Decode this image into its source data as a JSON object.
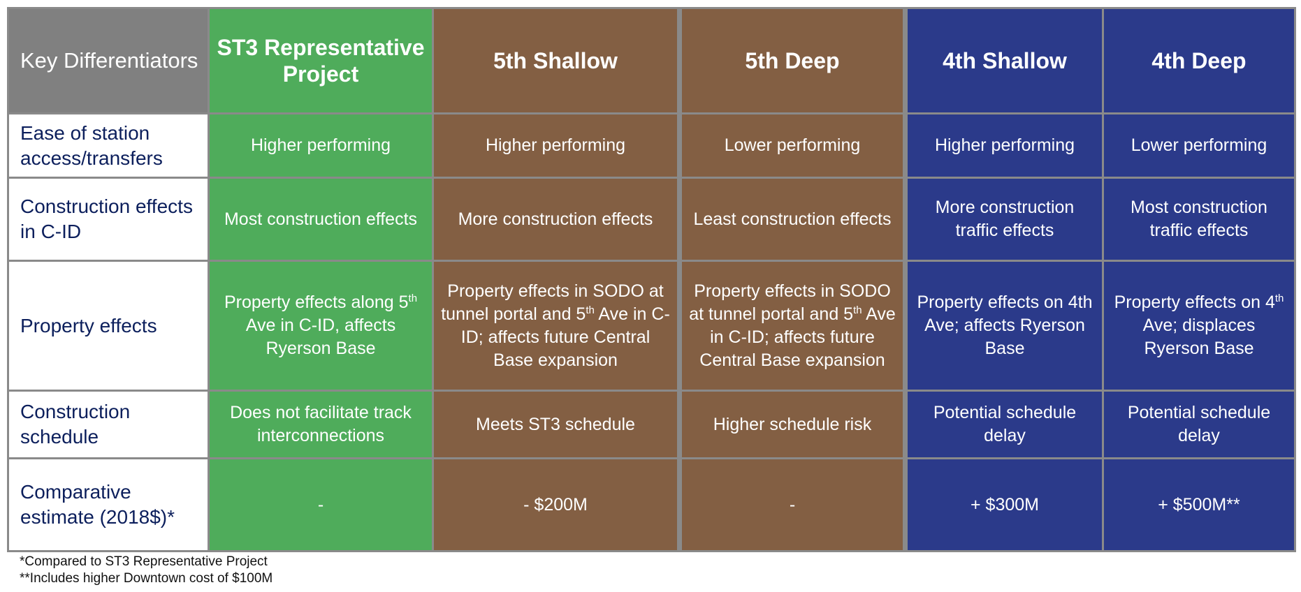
{
  "header": {
    "key_label": "Key Differentiators",
    "options": [
      {
        "name": "ST3 Representative Project",
        "color": "#4fac5b"
      },
      {
        "name": "5th Shallow",
        "color": "#835f43"
      },
      {
        "name": "5th Deep",
        "color": "#835f43"
      },
      {
        "name": "4th Shallow",
        "color": "#2b3a8a"
      },
      {
        "name": "4th Deep",
        "color": "#2b3a8a"
      }
    ]
  },
  "rows": [
    {
      "label": "Ease of station access/transfers",
      "height": 92,
      "cells": [
        [
          {
            "t": "Higher performing"
          }
        ],
        [
          {
            "t": "Higher performing"
          }
        ],
        [
          {
            "t": "Lower performing"
          }
        ],
        [
          {
            "t": "Higher performing"
          }
        ],
        [
          {
            "t": "Lower performing"
          }
        ]
      ]
    },
    {
      "label": "Construction effects in C-ID",
      "height": 119,
      "cells": [
        [
          {
            "t": "Most construction effects"
          }
        ],
        [
          {
            "t": "More construction effects"
          }
        ],
        [
          {
            "t": "Least construction effects"
          }
        ],
        [
          {
            "t": "More construction traffic effects"
          }
        ],
        [
          {
            "t": "Most construction traffic effects"
          }
        ]
      ]
    },
    {
      "label": "Property effects",
      "height": 186,
      "cells": [
        [
          {
            "t": "Property effects along 5"
          },
          {
            "t": "th",
            "sup": true
          },
          {
            "t": " Ave in C-ID, affects Ryerson Base"
          }
        ],
        [
          {
            "t": "Property effects in SODO at tunnel portal and 5"
          },
          {
            "t": "th",
            "sup": true
          },
          {
            "t": " Ave in C-ID; affects future Central Base expansion"
          }
        ],
        [
          {
            "t": "Property effects in SODO at tunnel portal and 5"
          },
          {
            "t": "th",
            "sup": true
          },
          {
            "t": " Ave in C-ID; affects future Central Base expansion"
          }
        ],
        [
          {
            "t": "Property effects on 4th Ave; affects Ryerson Base"
          }
        ],
        [
          {
            "t": "Property effects on 4"
          },
          {
            "t": "th",
            "sup": true
          },
          {
            "t": " Ave; displaces Ryerson Base"
          }
        ]
      ]
    },
    {
      "label": "Construction schedule",
      "height": 97,
      "cells": [
        [
          {
            "t": "Does not facilitate track interconnections"
          }
        ],
        [
          {
            "t": "Meets ST3 schedule"
          }
        ],
        [
          {
            "t": "Higher schedule risk"
          }
        ],
        [
          {
            "t": "Potential schedule delay"
          }
        ],
        [
          {
            "t": "Potential schedule delay"
          }
        ]
      ]
    },
    {
      "label": "Comparative estimate (2018$)*",
      "height": 133,
      "cells": [
        [
          {
            "t": "-"
          }
        ],
        [
          {
            "t": "- $200M"
          }
        ],
        [
          {
            "t": "-"
          }
        ],
        [
          {
            "t": "+ $300M"
          }
        ],
        [
          {
            "t": "+ $500M**"
          }
        ]
      ]
    }
  ],
  "footnotes": [
    "*Compared to ST3 Representative Project",
    "**Includes higher Downtown cost of $100M"
  ]
}
